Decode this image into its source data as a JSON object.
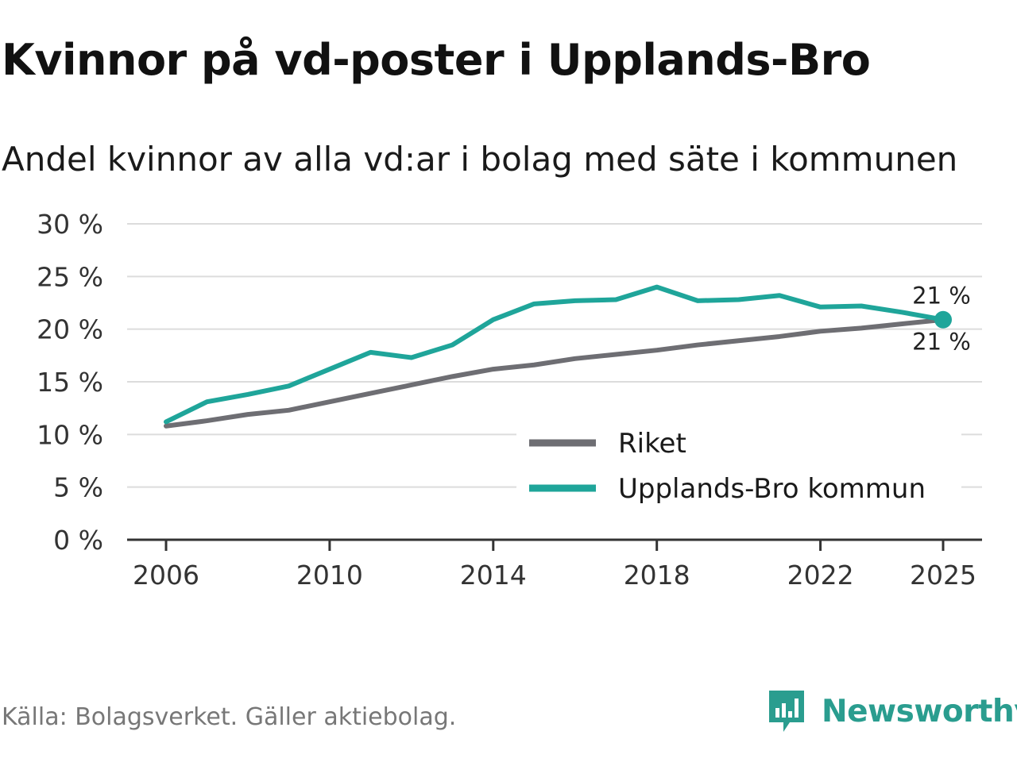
{
  "title": "Kvinnor på vd-poster i Upplands-Bro",
  "subtitle": "Andel kvinnor av alla vd:ar i bolag med säte i kommunen",
  "source": "Källa: Bolagsverket. Gäller aktiebolag.",
  "brand": {
    "name": "Newsworthy",
    "icon": "newsworthy-logo-icon",
    "color": "#2a9d8f"
  },
  "chart_data": {
    "type": "line",
    "x": [
      2006,
      2007,
      2008,
      2009,
      2010,
      2011,
      2012,
      2013,
      2014,
      2015,
      2016,
      2017,
      2018,
      2019,
      2020,
      2021,
      2022,
      2023,
      2024,
      2025
    ],
    "series": [
      {
        "name": "Riket",
        "color": "#6e6e73",
        "values": [
          10.8,
          11.3,
          11.9,
          12.3,
          13.1,
          13.9,
          14.7,
          15.5,
          16.2,
          16.6,
          17.2,
          17.6,
          18.0,
          18.5,
          18.9,
          19.3,
          19.8,
          20.1,
          20.5,
          20.9
        ]
      },
      {
        "name": "Upplands-Bro kommun",
        "color": "#1fa59a",
        "values": [
          11.2,
          13.1,
          13.8,
          14.6,
          16.2,
          17.8,
          17.3,
          18.5,
          20.9,
          22.4,
          22.7,
          22.8,
          24.0,
          22.7,
          22.8,
          23.2,
          22.1,
          22.2,
          21.6,
          20.9
        ]
      }
    ],
    "end_labels": {
      "Riket": "21 %",
      "Upplands-Bro kommun": "21 %"
    },
    "x_ticks": [
      2006,
      2010,
      2014,
      2018,
      2022,
      2025
    ],
    "x_tick_labels": [
      "2006",
      "2010",
      "2014",
      "2018",
      "2022",
      "2025"
    ],
    "y_ticks": [
      0,
      5,
      10,
      15,
      20,
      25,
      30
    ],
    "y_tick_labels": [
      "0 %",
      "5 %",
      "10 %",
      "15 %",
      "20 %",
      "25 %",
      "30 %"
    ],
    "xlim": [
      2006,
      2025
    ],
    "ylim": [
      0,
      30
    ],
    "grid": true,
    "legend": {
      "position": "bottom-right",
      "entries": [
        "Riket",
        "Upplands-Bro kommun"
      ]
    }
  }
}
